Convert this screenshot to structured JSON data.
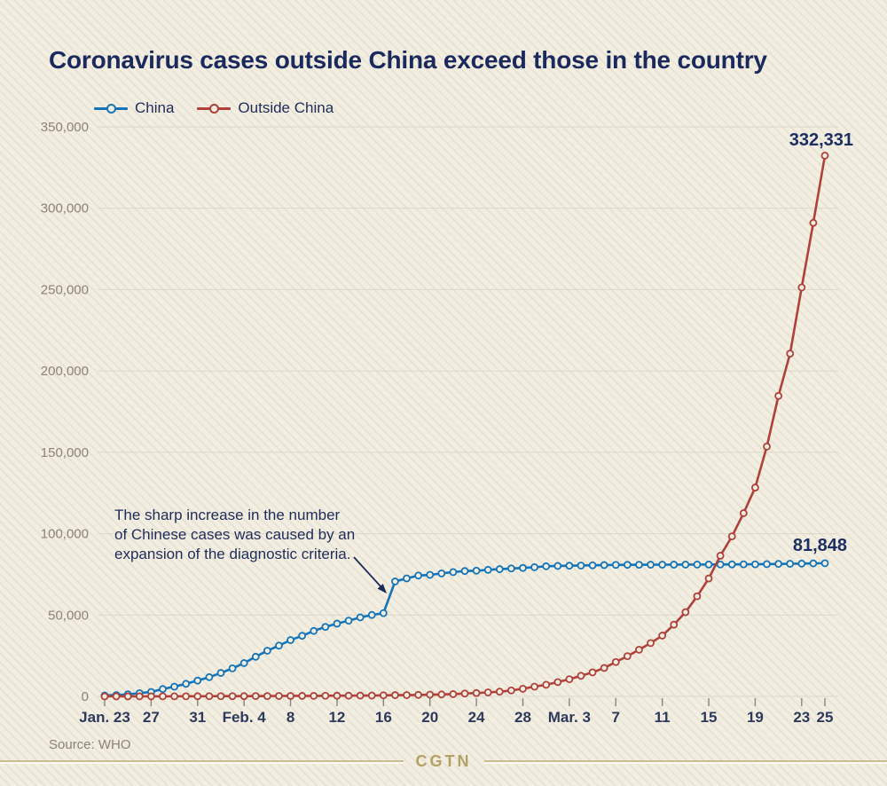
{
  "page": {
    "title": "Coronavirus cases outside China exceed those in the country",
    "source": "Source: WHO",
    "logo": "CGTN"
  },
  "colors": {
    "background": "#f3eee2",
    "china": "#1474b8",
    "outside_china": "#b0403a",
    "title": "#1a2a5c",
    "axis_label": "#8b8374",
    "tick_label": "#2e3a5c",
    "grid": "#dcd7c9",
    "tick_mark": "#8b8478",
    "end_label": "#1b2f63",
    "annotation": "#1e2c5a",
    "marker_fill": "#f3eee2",
    "logo_gold": "#b2a268"
  },
  "annotation": {
    "lines": [
      "The sharp increase in the number",
      "of Chinese cases was caused by an",
      "expansion of the diagnostic criteria."
    ]
  },
  "chart_data": {
    "type": "line",
    "title": "Coronavirus cases outside China exceed those in the country",
    "xlabel": "",
    "ylabel": "",
    "ylim": [
      0,
      350000
    ],
    "grid": "horizontal",
    "legend_position": "top-left",
    "dates": [
      "Jan. 23",
      "Jan. 24",
      "Jan. 25",
      "Jan. 26",
      "Jan. 27",
      "Jan. 28",
      "Jan. 29",
      "Jan. 30",
      "Jan. 31",
      "Feb. 1",
      "Feb. 2",
      "Feb. 3",
      "Feb. 4",
      "Feb. 5",
      "Feb. 6",
      "Feb. 7",
      "Feb. 8",
      "Feb. 9",
      "Feb. 10",
      "Feb. 11",
      "Feb. 12",
      "Feb. 13",
      "Feb. 14",
      "Feb. 15",
      "Feb. 16",
      "Feb. 17",
      "Feb. 18",
      "Feb. 19",
      "Feb. 20",
      "Feb. 21",
      "Feb. 22",
      "Feb. 23",
      "Feb. 24",
      "Feb. 25",
      "Feb. 26",
      "Feb. 27",
      "Feb. 28",
      "Feb. 29",
      "Mar. 1",
      "Mar. 2",
      "Mar. 3",
      "Mar. 4",
      "Mar. 5",
      "Mar. 6",
      "Mar. 7",
      "Mar. 8",
      "Mar. 9",
      "Mar. 10",
      "Mar. 11",
      "Mar. 12",
      "Mar. 13",
      "Mar. 14",
      "Mar. 15",
      "Mar. 16",
      "Mar. 17",
      "Mar. 18",
      "Mar. 19",
      "Mar. 20",
      "Mar. 21",
      "Mar. 22",
      "Mar. 23",
      "Mar. 24",
      "Mar. 25"
    ],
    "series": [
      {
        "name": "China",
        "color": "#1474b8",
        "end_label": "81,848",
        "values": [
          571,
          830,
          1297,
          1985,
          2741,
          4537,
          5997,
          7736,
          9720,
          11821,
          14411,
          17238,
          20471,
          24363,
          28060,
          31211,
          34598,
          37251,
          40235,
          42708,
          44730,
          46550,
          48548,
          50054,
          51174,
          70635,
          72528,
          74280,
          74675,
          75569,
          76392,
          77042,
          77262,
          77780,
          78191,
          78630,
          78961,
          79394,
          79968,
          80174,
          80304,
          80422,
          80565,
          80711,
          80813,
          80859,
          80904,
          80924,
          80955,
          80981,
          80991,
          81021,
          81048,
          81077,
          81116,
          81163,
          81174,
          81300,
          81416,
          81498,
          81601,
          81747,
          81848
        ]
      },
      {
        "name": "Outside China",
        "color": "#b0403a",
        "end_label": "332,331",
        "values": [
          10,
          23,
          23,
          29,
          37,
          56,
          68,
          82,
          106,
          132,
          146,
          153,
          159,
          191,
          216,
          270,
          288,
          307,
          319,
          395,
          441,
          447,
          505,
          526,
          683,
          794,
          804,
          924,
          1073,
          1200,
          1402,
          1769,
          2069,
          2459,
          2918,
          3664,
          4691,
          6009,
          7169,
          8774,
          10566,
          12668,
          14768,
          17481,
          21110,
          24727,
          28673,
          32778,
          37371,
          44067,
          51767,
          61518,
          72469,
          86434,
          98327,
          112614,
          128343,
          153517,
          184653,
          210644,
          251329,
          291010,
          332331
        ]
      }
    ],
    "y_ticks": [
      {
        "value": 0,
        "label": "0"
      },
      {
        "value": 50000,
        "label": "50,000"
      },
      {
        "value": 100000,
        "label": "100,000"
      },
      {
        "value": 150000,
        "label": "150,000"
      },
      {
        "value": 200000,
        "label": "200,000"
      },
      {
        "value": 250000,
        "label": "250,000"
      },
      {
        "value": 300000,
        "label": "300,000"
      },
      {
        "value": 350000,
        "label": "350,000"
      }
    ],
    "x_ticks": [
      {
        "index": 0,
        "label": "Jan. 23"
      },
      {
        "index": 4,
        "label": "27"
      },
      {
        "index": 8,
        "label": "31"
      },
      {
        "index": 12,
        "label": "Feb. 4"
      },
      {
        "index": 16,
        "label": "8"
      },
      {
        "index": 20,
        "label": "12"
      },
      {
        "index": 24,
        "label": "16"
      },
      {
        "index": 28,
        "label": "20"
      },
      {
        "index": 32,
        "label": "24"
      },
      {
        "index": 36,
        "label": "28"
      },
      {
        "index": 40,
        "label": "Mar. 3"
      },
      {
        "index": 44,
        "label": "7"
      },
      {
        "index": 48,
        "label": "11"
      },
      {
        "index": 52,
        "label": "15"
      },
      {
        "index": 56,
        "label": "19"
      },
      {
        "index": 60,
        "label": "23"
      },
      {
        "index": 62,
        "label": "25"
      }
    ],
    "annotation": {
      "text": "The sharp increase in the number of Chinese cases was caused by an expansion of the diagnostic criteria.",
      "points_at": "China series jump between Feb. 16 and Feb. 17"
    }
  }
}
